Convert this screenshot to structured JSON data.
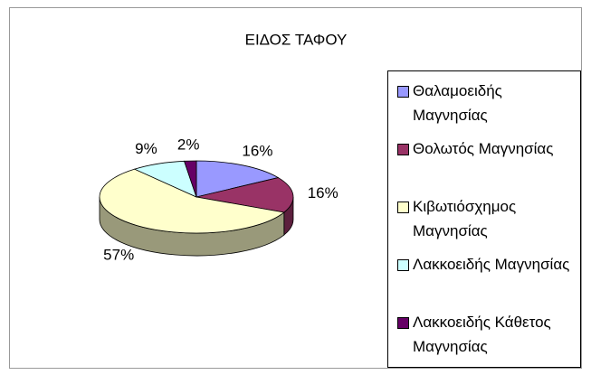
{
  "chart_data": {
    "type": "pie",
    "title": "ΕΙΔΟΣ ΤΑΦΟΥ",
    "categories": [
      "Θαλαμοειδής Μαγνησίας",
      "Θολωτός Μαγνησίας",
      "Κιβωτιόσχημος Μαγνησίας",
      "Λακκοειδής Μαγνησίας",
      "Λακκοειδής Κάθετος Μαγνησίας"
    ],
    "values": [
      16,
      16,
      57,
      9,
      2
    ],
    "value_labels": [
      "16%",
      "16%",
      "57%",
      "9%",
      "2%"
    ],
    "colors": [
      "#9999ff",
      "#993366",
      "#ffffcc",
      "#ccffff",
      "#660066"
    ],
    "legend": "right"
  }
}
